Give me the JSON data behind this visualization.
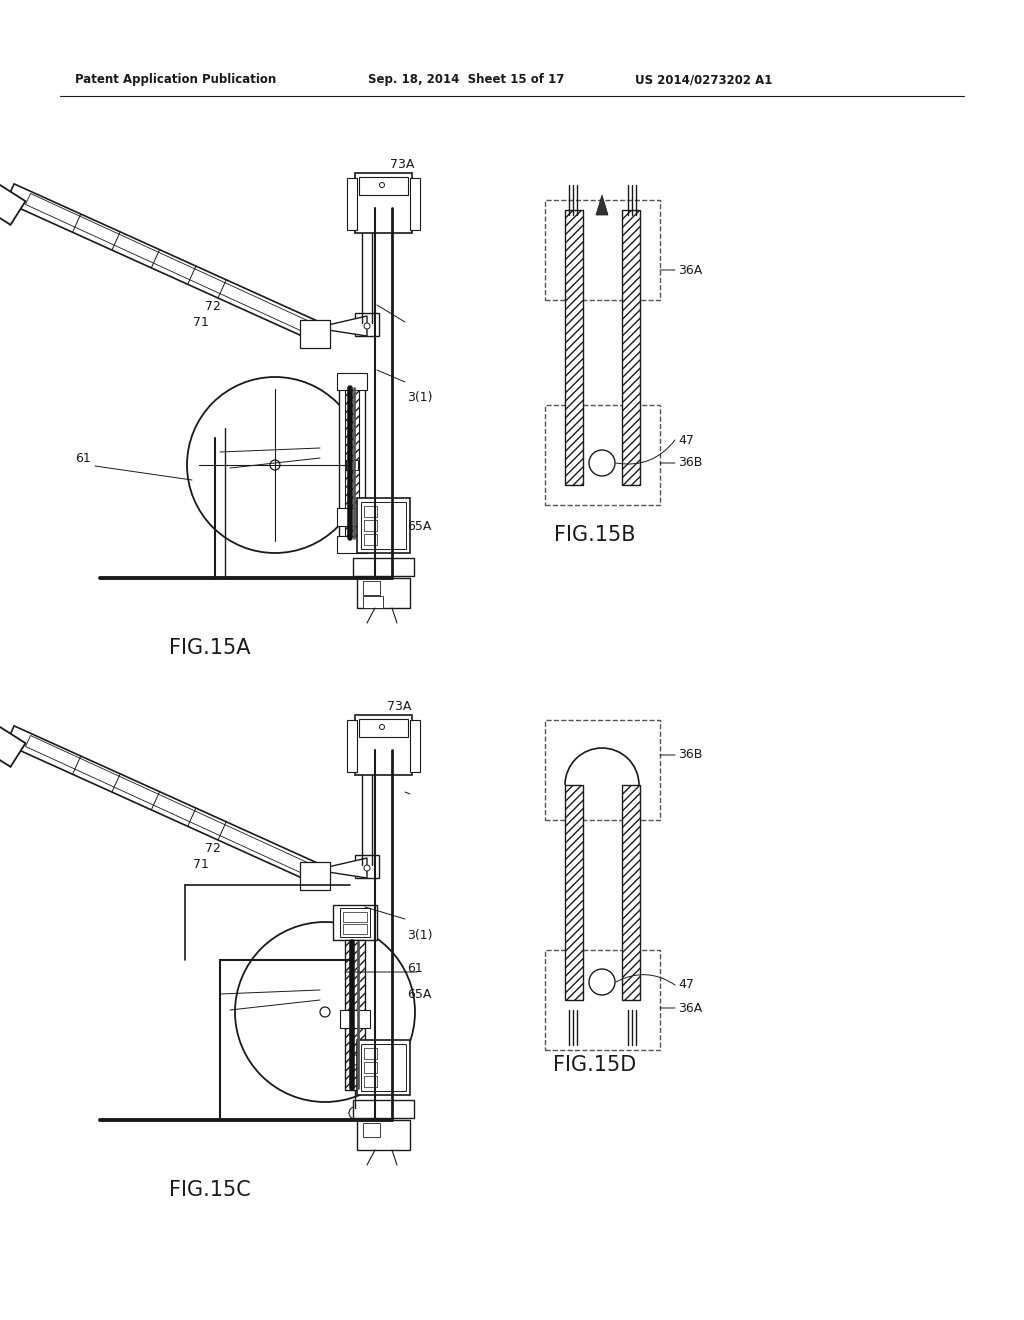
{
  "bg_color": "#ffffff",
  "line_color": "#1a1a1a",
  "header_left": "Patent Application Publication",
  "header_center": "Sep. 18, 2014  Sheet 15 of 17",
  "header_right": "US 2014/0273202 A1",
  "fig15a_label": "FIG.15A",
  "fig15b_label": "FIG.15B",
  "fig15c_label": "FIG.15C",
  "fig15d_label": "FIG.15D",
  "fig_label_fontsize": 15,
  "header_fontsize": 8.5,
  "ref_fontsize": 9
}
